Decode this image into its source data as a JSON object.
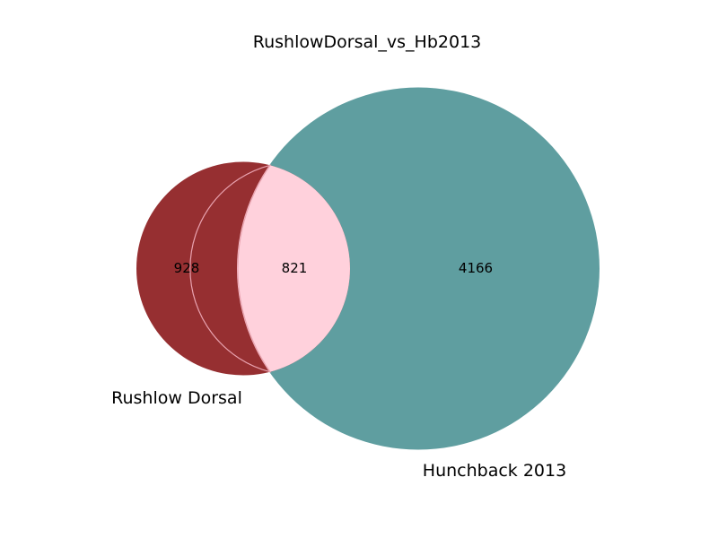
{
  "title": "RushlowDorsal_vs_Hb2013",
  "sets": [
    {
      "name": "Rushlow Dorsal",
      "color": "#962f31"
    },
    {
      "name": "Hunchback 2013",
      "color": "#5f9ea0"
    }
  ],
  "regions": {
    "left_only": {
      "count": "928",
      "color": "#962f31"
    },
    "intersection": {
      "count": "821",
      "color": "#ffd1dc",
      "edge_color": "#e9a3b0"
    },
    "right_only": {
      "count": "4166",
      "color": "#5f9ea0"
    }
  }
}
